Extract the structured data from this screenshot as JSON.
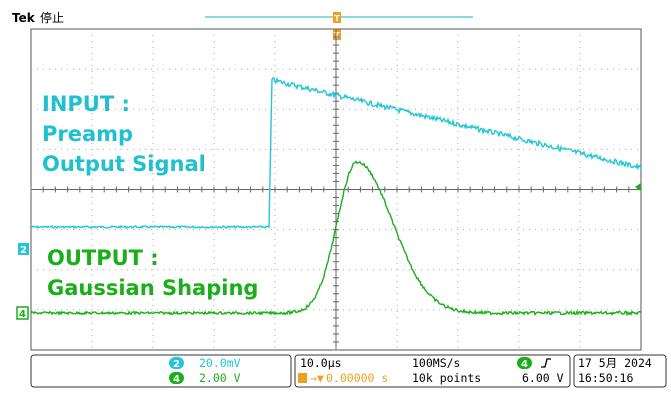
{
  "header": {
    "brand": "Tek",
    "acq_state": "停止",
    "trigger_marker": "T"
  },
  "annotations": {
    "input_line1": "INPUT :",
    "input_line2": "Preamp",
    "input_line3": "Output Signal",
    "output_line1": "OUTPUT :",
    "output_line2": "Gaussian Shaping"
  },
  "channels": [
    {
      "id": "2",
      "color": "#22c6d6",
      "scale": "20.0mV"
    },
    {
      "id": "4",
      "color": "#1aaf1a",
      "scale": "2.00 V"
    }
  ],
  "timebase": {
    "scale": "10.0µs",
    "sample_rate": "100MS/s",
    "trigger_position": "0.00000 s",
    "record_length": "10k points"
  },
  "trigger": {
    "source": "4",
    "slope_icon": "rising-edge-icon",
    "level": "6.00 V"
  },
  "datetime": {
    "date": "17 5月  2024",
    "time": "16:50:16"
  },
  "colors": {
    "input_trace": "#22c6d6",
    "output_trace": "#1aaf1a",
    "trigger_marker": "#f0a020",
    "grid": "#999999"
  }
}
